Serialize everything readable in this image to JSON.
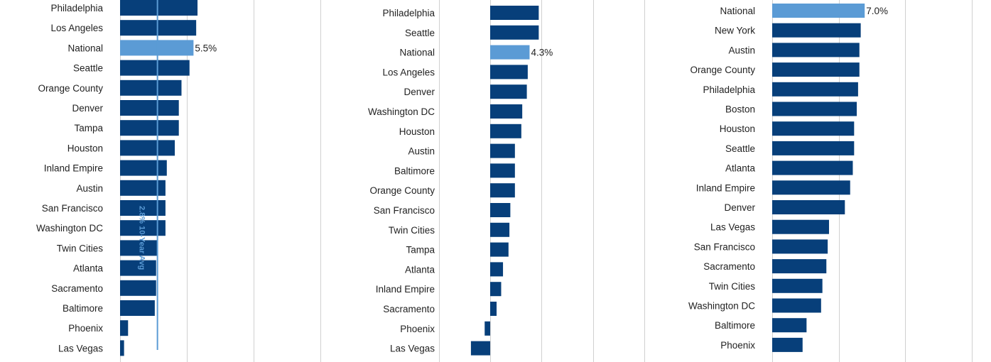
{
  "colors": {
    "bar": "#073f7a",
    "national": "#5b9bd5",
    "grid": "#d0d0d0",
    "reference": "#5b9bd5",
    "text": "#222222"
  },
  "chart_data": [
    {
      "type": "bar",
      "orientation": "horizontal",
      "categories": [
        "Philadelphia",
        "Los Angeles",
        "National",
        "Seattle",
        "Orange County",
        "Denver",
        "Tampa",
        "Houston",
        "Inland Empire",
        "Austin",
        "San Francisco",
        "Washington DC",
        "Twin Cities",
        "Atlanta",
        "Sacramento",
        "Baltimore",
        "Phoenix",
        "Las Vegas"
      ],
      "values": [
        5.8,
        5.7,
        5.5,
        5.2,
        4.6,
        4.4,
        4.4,
        4.1,
        3.5,
        3.4,
        3.4,
        3.4,
        2.8,
        2.7,
        2.7,
        2.6,
        0.6,
        0.3
      ],
      "highlight": "National",
      "data_labels": {
        "National": "5.5%"
      },
      "reference_line": {
        "value": 2.8,
        "label": "2.8% 10-Year Avg"
      },
      "xlim": [
        0,
        10
      ]
    },
    {
      "type": "bar",
      "orientation": "horizontal",
      "categories": [
        "Philadelphia",
        "Seattle",
        "National",
        "Los Angeles",
        "Denver",
        "Washington DC",
        "Houston",
        "Austin",
        "Baltimore",
        "Orange County",
        "San Francisco",
        "Twin Cities",
        "Tampa",
        "Atlanta",
        "Inland Empire",
        "Sacramento",
        "Phoenix",
        "Las Vegas"
      ],
      "values": [
        5.3,
        5.3,
        4.3,
        4.1,
        4.0,
        3.5,
        3.4,
        2.7,
        2.7,
        2.7,
        2.2,
        2.1,
        2.0,
        1.4,
        1.2,
        0.7,
        -0.6,
        -2.1
      ],
      "highlight": "National",
      "data_labels": {
        "National": "4.3%"
      },
      "xlim": [
        -10,
        15
      ]
    },
    {
      "type": "bar",
      "orientation": "horizontal",
      "categories": [
        "National",
        "New York",
        "Austin",
        "Orange County",
        "Philadelphia",
        "Boston",
        "Houston",
        "Seattle",
        "Atlanta",
        "Inland Empire",
        "Denver",
        "Las Vegas",
        "San Francisco",
        "Sacramento",
        "Twin Cities",
        "Washington DC",
        "Baltimore",
        "Phoenix"
      ],
      "values": [
        7.0,
        6.7,
        6.6,
        6.6,
        6.5,
        6.4,
        6.2,
        6.2,
        6.1,
        5.9,
        5.5,
        4.3,
        4.2,
        4.1,
        3.8,
        3.7,
        2.6,
        2.3
      ],
      "highlight": "National",
      "data_labels": {
        "National": "7.0%"
      },
      "xlim": [
        0,
        15
      ]
    }
  ]
}
